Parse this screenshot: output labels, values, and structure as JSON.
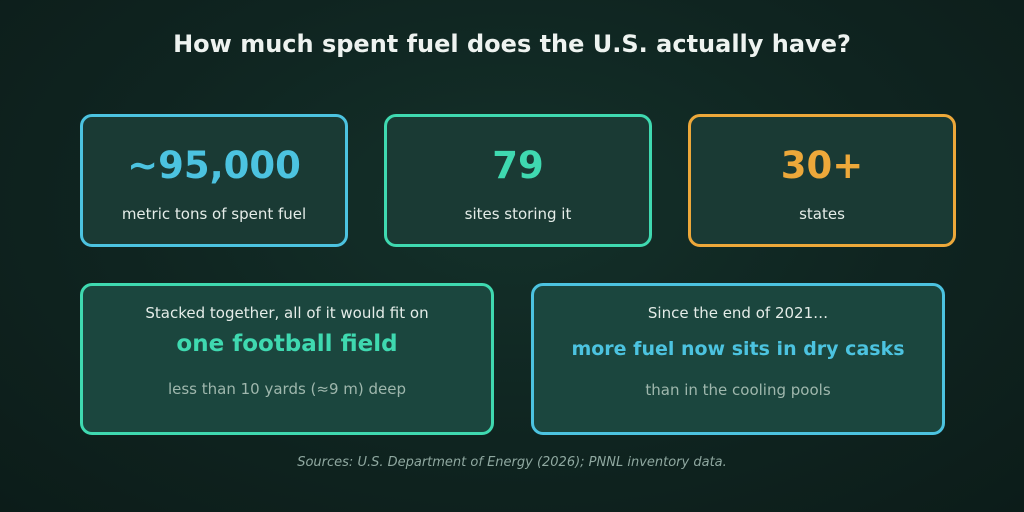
{
  "title": "How much spent fuel does the U.S. actually have?",
  "colors": {
    "blue": "#4cc3e0",
    "teal": "#3fd9b0",
    "orange": "#eda83a"
  },
  "stats": [
    {
      "value": "~95,000",
      "label": "metric tons of spent fuel"
    },
    {
      "value": "79",
      "label": "sites storing it"
    },
    {
      "value": "30+",
      "label": "states"
    }
  ],
  "facts": [
    {
      "intro": "Stacked together, all of it would fit on",
      "highlight": "one football field",
      "detail": "less than 10 yards (≈9 m) deep"
    },
    {
      "intro": "Since the end of 2021…",
      "highlight": "more fuel now sits in dry casks",
      "detail": "than in the cooling pools"
    }
  ],
  "source": "Sources: U.S. Department of Energy (2026); PNNL inventory data."
}
